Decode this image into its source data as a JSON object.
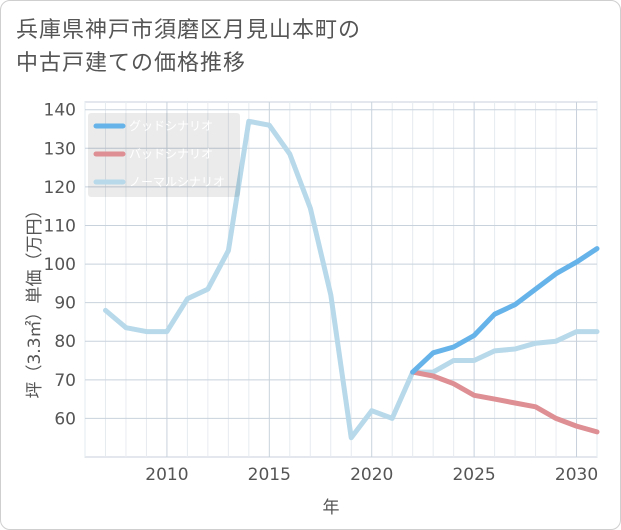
{
  "title_lines": [
    "兵庫県神戸市須磨区月見山本町の",
    "中古戸建ての価格推移"
  ],
  "chart_data": {
    "type": "line",
    "title": "兵庫県神戸市須磨区月見山本町の中古戸建ての価格推移",
    "xlabel": "年",
    "ylabel": "坪（3.3㎡）単価（万円）",
    "xlim": [
      2006,
      2031
    ],
    "ylim": [
      50,
      142
    ],
    "x_ticks": [
      2010,
      2015,
      2020,
      2025,
      2030
    ],
    "y_ticks": [
      60,
      70,
      80,
      90,
      100,
      110,
      120,
      130,
      140
    ],
    "grid": true,
    "legend_position": "top-left",
    "series": [
      {
        "name": "グッドシナリオ",
        "color": "#66b3ea",
        "x": [
          2022,
          2023,
          2024,
          2025,
          2026,
          2027,
          2028,
          2029,
          2030,
          2031
        ],
        "y": [
          72,
          77,
          78.5,
          81.5,
          87,
          89.5,
          93.5,
          97.5,
          100.5,
          104
        ]
      },
      {
        "name": "バッドシナリオ",
        "color": "#de8f93",
        "x": [
          2022,
          2023,
          2024,
          2025,
          2026,
          2027,
          2028,
          2029,
          2030,
          2031
        ],
        "y": [
          72,
          71,
          69,
          66,
          65,
          64,
          63,
          60,
          58,
          56.5
        ]
      },
      {
        "name": "ノーマルシナリオ",
        "color": "#b7d9ea",
        "x": [
          2007,
          2008,
          2009,
          2010,
          2011,
          2012,
          2013,
          2014,
          2015,
          2016,
          2017,
          2018,
          2019,
          2020,
          2021,
          2022,
          2023,
          2024,
          2025,
          2026,
          2027,
          2028,
          2029,
          2030,
          2031
        ],
        "y": [
          88,
          83.5,
          82.5,
          82.5,
          91,
          93.5,
          103.5,
          137,
          136,
          128.5,
          114.5,
          92,
          55,
          62,
          60,
          72,
          72,
          75,
          75,
          77.5,
          78,
          79.5,
          80,
          82.5,
          82.5
        ]
      }
    ]
  }
}
